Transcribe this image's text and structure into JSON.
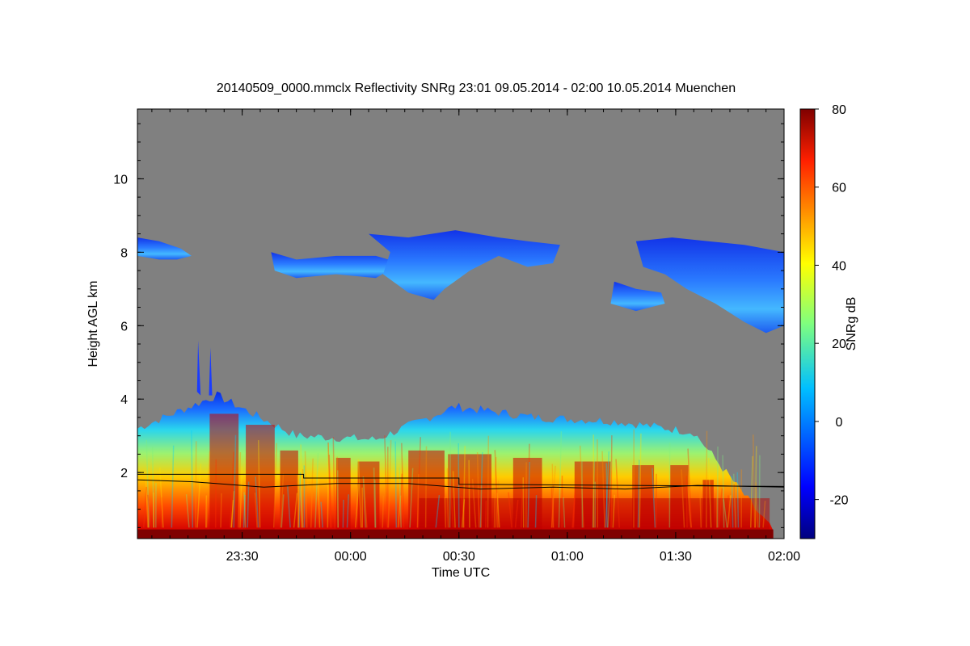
{
  "chart_data": {
    "type": "heatmap",
    "title": "20140509_0000.mmclx Reflectivity SNRg   23:01 09.05.2014 - 02:00 10.05.2014 Muenchen",
    "xlabel": "Time UTC",
    "ylabel": "Height AGL km",
    "x_range": [
      "23:01",
      "02:00"
    ],
    "y_range_km": [
      0.2,
      11.9
    ],
    "x_ticks": [
      "23:30",
      "00:00",
      "00:30",
      "01:00",
      "01:30",
      "02:00"
    ],
    "x_tick_minutes_after_23_01": [
      29,
      59,
      89,
      119,
      149,
      179
    ],
    "y_ticks": [
      2,
      4,
      6,
      8,
      10
    ],
    "background_color": "#808080",
    "colorbar": {
      "label": "SNRg dB",
      "range": [
        -30,
        80
      ],
      "ticks": [
        -20,
        0,
        20,
        40,
        60,
        80
      ],
      "colormap": "jet"
    },
    "layers": [
      {
        "name": "lower-cloud-rain-layer",
        "x_minutes": [
          0,
          176
        ],
        "top_km": [
          3.2,
          4.1,
          3.0,
          2.9,
          3.8,
          3.5,
          3.4,
          3.1,
          0.4
        ],
        "core_snr_db": [
          45,
          75
        ]
      },
      {
        "name": "upper-cloud-layer-west",
        "x_minutes": [
          0,
          15
        ],
        "height_km": [
          7.8,
          8.4
        ],
        "snr_db": [
          -15,
          -5
        ]
      },
      {
        "name": "upper-cloud-layer-center",
        "x_minutes": [
          37,
          117
        ],
        "height_km": [
          6.6,
          8.6
        ],
        "snr_db": [
          -10,
          10
        ]
      },
      {
        "name": "upper-cloud-layer-east",
        "x_minutes": [
          138,
          179
        ],
        "height_km": [
          5.8,
          8.4
        ],
        "snr_db": [
          -5,
          10
        ]
      }
    ],
    "lines": [
      {
        "name": "upper-step-line",
        "x_minutes": [
          0,
          46,
          46,
          89,
          89,
          179
        ],
        "y_km": [
          1.95,
          1.95,
          1.85,
          1.85,
          1.68,
          1.62
        ]
      },
      {
        "name": "lower-noisy-line",
        "x_minutes": [
          0,
          15,
          35,
          55,
          75,
          95,
          115,
          135,
          155,
          179
        ],
        "y_km": [
          1.8,
          1.75,
          1.6,
          1.7,
          1.7,
          1.55,
          1.6,
          1.55,
          1.65,
          1.6
        ]
      }
    ]
  }
}
